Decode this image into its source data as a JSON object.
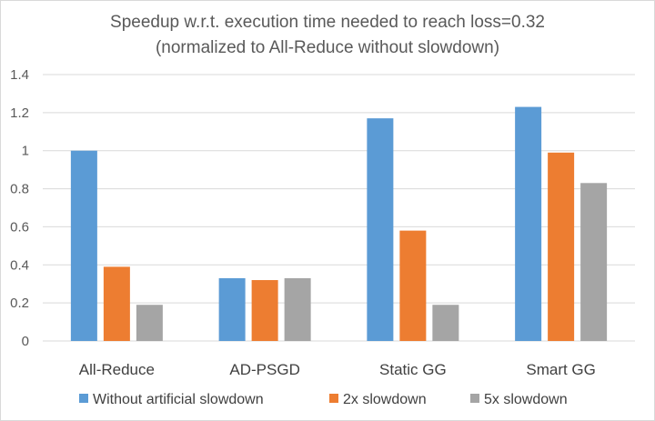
{
  "chart_data": {
    "type": "bar",
    "title": "Speedup w.r.t. execution time needed to reach loss=0.32",
    "subtitle": "(normalized to All-Reduce without slowdown)",
    "categories": [
      "All-Reduce",
      "AD-PSGD",
      "Static GG",
      "Smart GG"
    ],
    "series": [
      {
        "name": "Without artificial slowdown",
        "color": "#5b9bd5",
        "values": [
          1.0,
          0.33,
          1.17,
          1.23
        ]
      },
      {
        "name": "2x slowdown",
        "color": "#ed7d31",
        "values": [
          0.39,
          0.32,
          0.58,
          0.99
        ]
      },
      {
        "name": "5x slowdown",
        "color": "#a5a5a5",
        "values": [
          0.19,
          0.33,
          0.19,
          0.83
        ]
      }
    ],
    "ylim": [
      0,
      1.4
    ],
    "yticks": [
      "0",
      "0.2",
      "0.4",
      "0.6",
      "0.8",
      "1",
      "1.2",
      "1.4"
    ],
    "grid": true,
    "legend_position": "bottom",
    "xlabel": "",
    "ylabel": ""
  }
}
